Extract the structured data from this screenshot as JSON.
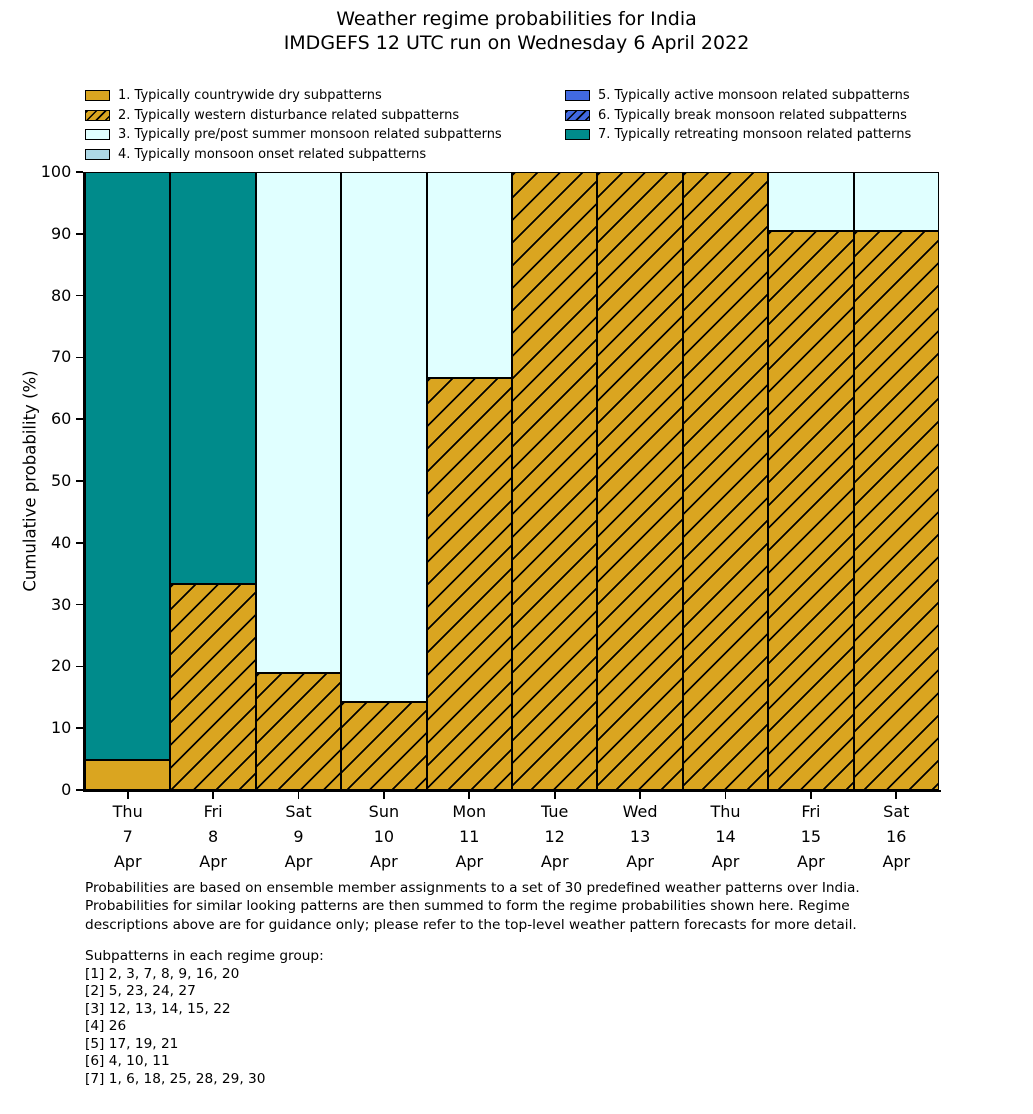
{
  "header": {
    "title": "Weather regime probabilities for India",
    "subtitle": "IMDGEFS 12 UTC run on Wednesday 6 April 2022"
  },
  "chart_data": {
    "type": "bar",
    "stacked": true,
    "title": "Weather regime probabilities for India",
    "subtitle": "IMDGEFS 12 UTC run on Wednesday 6 April 2022",
    "ylabel": "Cumulative probability (%)",
    "xlabel": "",
    "ylim": [
      0,
      100
    ],
    "yticks": [
      0,
      10,
      20,
      30,
      40,
      50,
      60,
      70,
      80,
      90,
      100
    ],
    "grid": false,
    "legend_position": "top",
    "legend_columns": [
      [
        0,
        1,
        2,
        3
      ],
      [
        4,
        5,
        6
      ]
    ],
    "bar_edge_color": "#000000",
    "categories": [
      {
        "day": "Thu",
        "date": "7",
        "month": "Apr"
      },
      {
        "day": "Fri",
        "date": "8",
        "month": "Apr"
      },
      {
        "day": "Sat",
        "date": "9",
        "month": "Apr"
      },
      {
        "day": "Sun",
        "date": "10",
        "month": "Apr"
      },
      {
        "day": "Mon",
        "date": "11",
        "month": "Apr"
      },
      {
        "day": "Tue",
        "date": "12",
        "month": "Apr"
      },
      {
        "day": "Wed",
        "date": "13",
        "month": "Apr"
      },
      {
        "day": "Thu",
        "date": "14",
        "month": "Apr"
      },
      {
        "day": "Fri",
        "date": "15",
        "month": "Apr"
      },
      {
        "day": "Sat",
        "date": "16",
        "month": "Apr"
      }
    ],
    "series": [
      {
        "name": "1. Typically countrywide dry subpatterns",
        "color": "#DAA520",
        "hatch": false,
        "values": [
          4.8,
          0,
          0,
          0,
          0,
          0,
          0,
          0,
          0,
          0
        ]
      },
      {
        "name": "2. Typically western disturbance related subpatterns",
        "color": "#DAA520",
        "hatch": true,
        "values": [
          0,
          33.3,
          19.0,
          14.3,
          66.7,
          100,
          100,
          100,
          90.5,
          90.5
        ]
      },
      {
        "name": "3. Typically pre/post summer monsoon related subpatterns",
        "color": "#E0FFFF",
        "hatch": false,
        "values": [
          0,
          0,
          81.0,
          85.7,
          33.3,
          0,
          0,
          0,
          9.5,
          9.5
        ]
      },
      {
        "name": "4. Typically monsoon onset related subpatterns",
        "color": "#ADD8E6",
        "hatch": false,
        "values": [
          0,
          0,
          0,
          0,
          0,
          0,
          0,
          0,
          0,
          0
        ]
      },
      {
        "name": "5. Typically active monsoon related subpatterns",
        "color": "#4169E1",
        "hatch": false,
        "values": [
          0,
          0,
          0,
          0,
          0,
          0,
          0,
          0,
          0,
          0
        ]
      },
      {
        "name": "6. Typically break monsoon related subpatterns",
        "color": "#4169E1",
        "hatch": true,
        "values": [
          0,
          0,
          0,
          0,
          0,
          0,
          0,
          0,
          0,
          0
        ]
      },
      {
        "name": "7. Typically retreating monsoon related patterns",
        "color": "#008B8B",
        "hatch": false,
        "values": [
          95.2,
          66.7,
          0,
          0,
          0,
          0,
          0,
          0,
          0,
          0
        ]
      }
    ]
  },
  "footnote": {
    "lines": [
      "Probabilities are based on ensemble member assignments to a set of 30 predefined weather patterns over India.",
      "Probabilities for similar looking patterns are then summed to form the regime probabilities shown here. Regime",
      "descriptions above are for guidance only; please refer to the top-level weather pattern forecasts for more detail."
    ]
  },
  "subpatterns": {
    "heading": "Subpatterns in each regime group:",
    "groups": [
      "[1] 2, 3, 7, 8, 9, 16, 20",
      "[2] 5, 23, 24, 27",
      "[3] 12, 13, 14, 15, 22",
      "[4] 26",
      "[5] 17, 19, 21",
      "[6] 4, 10, 11",
      "[7] 1, 6, 18, 25, 28, 29, 30"
    ]
  }
}
